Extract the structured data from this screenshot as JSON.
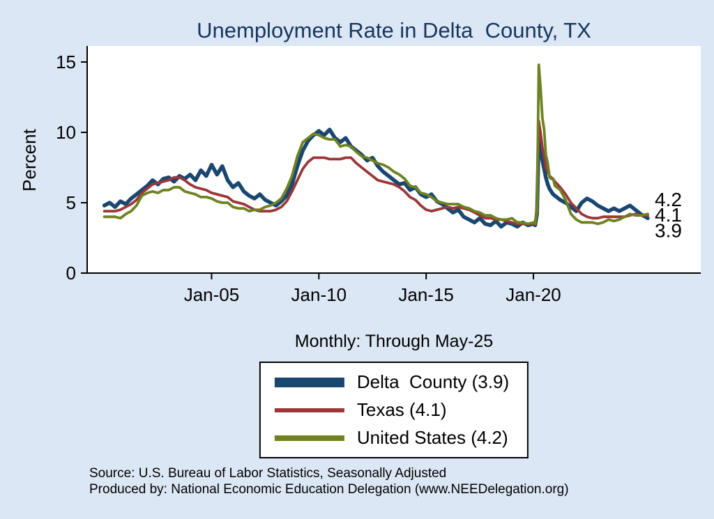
{
  "page": {
    "background": "#dbe7f4",
    "plot_background": "#ffffff",
    "axis_color": "#000000"
  },
  "chart_data": {
    "type": "line",
    "title": "Unemployment Rate in Delta  County, TX",
    "subtitle": "Monthly: Through May-25",
    "ylabel": "Percent",
    "ylim": [
      0,
      15
    ],
    "grid": false,
    "legend_position": "bottom-center",
    "y_ticks": [
      {
        "v": 0,
        "label": "0"
      },
      {
        "v": 5,
        "label": "5"
      },
      {
        "v": 10,
        "label": "10"
      },
      {
        "v": 15,
        "label": "15"
      }
    ],
    "x_ticks": [
      {
        "v": 2005,
        "label": "Jan-05"
      },
      {
        "v": 2010,
        "label": "Jan-10"
      },
      {
        "v": 2015,
        "label": "Jan-15"
      },
      {
        "v": 2020,
        "label": "Jan-20"
      }
    ],
    "x": [
      2000.0,
      2000.25,
      2000.5,
      2000.75,
      2001.0,
      2001.25,
      2001.5,
      2001.75,
      2002.0,
      2002.25,
      2002.5,
      2002.75,
      2003.0,
      2003.25,
      2003.5,
      2003.75,
      2004.0,
      2004.25,
      2004.5,
      2004.75,
      2005.0,
      2005.25,
      2005.5,
      2005.75,
      2006.0,
      2006.25,
      2006.5,
      2006.75,
      2007.0,
      2007.25,
      2007.5,
      2007.75,
      2008.0,
      2008.25,
      2008.5,
      2008.75,
      2009.0,
      2009.25,
      2009.5,
      2009.75,
      2010.0,
      2010.25,
      2010.5,
      2010.75,
      2011.0,
      2011.25,
      2011.5,
      2011.75,
      2012.0,
      2012.25,
      2012.5,
      2012.75,
      2013.0,
      2013.25,
      2013.5,
      2013.75,
      2014.0,
      2014.25,
      2014.5,
      2014.75,
      2015.0,
      2015.25,
      2015.5,
      2015.75,
      2016.0,
      2016.25,
      2016.5,
      2016.75,
      2017.0,
      2017.25,
      2017.5,
      2017.75,
      2018.0,
      2018.25,
      2018.5,
      2018.75,
      2019.0,
      2019.25,
      2019.5,
      2019.75,
      2020.0,
      2020.08,
      2020.17,
      2020.25,
      2020.33,
      2020.42,
      2020.5,
      2020.58,
      2020.67,
      2020.75,
      2020.83,
      2020.92,
      2021.0,
      2021.25,
      2021.5,
      2021.75,
      2022.0,
      2022.25,
      2022.5,
      2022.75,
      2023.0,
      2023.25,
      2023.5,
      2023.75,
      2024.0,
      2024.25,
      2024.5,
      2024.75,
      2025.0,
      2025.33
    ],
    "series": [
      {
        "name": "Delta  County (3.9)",
        "slug": "delta-county",
        "color": "#1a476f",
        "width": 5.5,
        "values": [
          4.8,
          5.0,
          4.7,
          5.1,
          4.9,
          5.3,
          5.6,
          5.9,
          6.2,
          6.6,
          6.3,
          6.7,
          6.8,
          6.5,
          6.9,
          6.7,
          7.0,
          6.6,
          7.3,
          6.9,
          7.7,
          7.0,
          7.6,
          6.6,
          6.1,
          6.4,
          5.8,
          5.5,
          5.3,
          5.6,
          5.2,
          5.0,
          4.8,
          5.1,
          5.5,
          6.3,
          7.6,
          8.7,
          9.4,
          9.8,
          10.1,
          9.8,
          10.2,
          9.6,
          9.3,
          9.6,
          9.0,
          8.7,
          8.4,
          8.0,
          8.2,
          7.6,
          7.2,
          6.9,
          6.6,
          6.3,
          6.4,
          5.9,
          6.1,
          5.6,
          5.4,
          5.6,
          5.1,
          4.9,
          4.6,
          4.3,
          4.5,
          4.0,
          3.8,
          3.6,
          3.9,
          3.5,
          3.4,
          3.7,
          3.3,
          3.6,
          3.5,
          3.3,
          3.6,
          3.4,
          3.5,
          3.4,
          4.2,
          9.7,
          8.9,
          8.0,
          7.4,
          6.8,
          6.3,
          6.0,
          5.8,
          5.6,
          5.5,
          5.2,
          5.0,
          4.7,
          4.4,
          5.0,
          5.3,
          5.1,
          4.8,
          4.6,
          4.4,
          4.6,
          4.4,
          4.6,
          4.8,
          4.5,
          4.2,
          3.9
        ]
      },
      {
        "name": "Texas (4.1)",
        "slug": "texas",
        "color": "#9b3739",
        "width": 3.8,
        "values": [
          4.4,
          4.4,
          4.4,
          4.5,
          4.7,
          4.9,
          5.2,
          5.7,
          6.0,
          6.3,
          6.4,
          6.5,
          6.6,
          6.8,
          6.8,
          6.6,
          6.3,
          6.1,
          6.0,
          5.9,
          5.7,
          5.6,
          5.5,
          5.4,
          5.1,
          5.0,
          4.9,
          4.7,
          4.5,
          4.4,
          4.4,
          4.4,
          4.5,
          4.7,
          5.1,
          5.8,
          6.6,
          7.4,
          7.9,
          8.2,
          8.2,
          8.2,
          8.1,
          8.1,
          8.1,
          8.2,
          8.2,
          7.8,
          7.5,
          7.2,
          6.9,
          6.6,
          6.5,
          6.4,
          6.3,
          6.1,
          5.8,
          5.4,
          5.2,
          4.8,
          4.5,
          4.4,
          4.5,
          4.6,
          4.7,
          4.6,
          4.7,
          4.6,
          4.5,
          4.3,
          4.1,
          3.9,
          3.9,
          3.8,
          3.8,
          3.7,
          3.6,
          3.5,
          3.5,
          3.5,
          3.5,
          3.5,
          4.8,
          10.8,
          10.0,
          8.9,
          8.3,
          7.5,
          7.2,
          6.9,
          6.8,
          6.7,
          6.5,
          6.1,
          5.6,
          5.0,
          4.6,
          4.2,
          4.0,
          3.9,
          3.9,
          4.0,
          4.0,
          4.0,
          4.0,
          4.0,
          4.1,
          4.2,
          4.1,
          4.1
        ]
      },
      {
        "name": "United States (4.2)",
        "slug": "united-states",
        "color": "#6d8220",
        "width": 3.8,
        "values": [
          4.0,
          4.0,
          4.0,
          3.9,
          4.2,
          4.4,
          4.8,
          5.5,
          5.7,
          5.8,
          5.7,
          5.9,
          5.9,
          6.1,
          6.1,
          5.8,
          5.7,
          5.6,
          5.4,
          5.4,
          5.3,
          5.1,
          5.0,
          5.0,
          4.7,
          4.6,
          4.6,
          4.4,
          4.5,
          4.5,
          4.7,
          4.8,
          5.0,
          5.3,
          6.0,
          6.9,
          8.3,
          9.3,
          9.6,
          9.9,
          9.8,
          9.6,
          9.5,
          9.5,
          9.0,
          9.1,
          9.0,
          8.6,
          8.3,
          8.2,
          8.0,
          7.8,
          7.7,
          7.5,
          7.2,
          7.0,
          6.7,
          6.2,
          6.1,
          5.7,
          5.6,
          5.4,
          5.1,
          5.0,
          4.9,
          4.9,
          4.9,
          4.7,
          4.6,
          4.4,
          4.3,
          4.1,
          4.1,
          3.9,
          3.8,
          3.8,
          3.9,
          3.6,
          3.6,
          3.5,
          3.6,
          3.5,
          4.4,
          14.8,
          13.2,
          11.0,
          10.2,
          8.4,
          7.8,
          6.8,
          6.7,
          6.7,
          6.2,
          5.9,
          5.2,
          4.2,
          3.8,
          3.6,
          3.6,
          3.6,
          3.5,
          3.6,
          3.8,
          3.7,
          3.8,
          4.0,
          4.2,
          4.1,
          4.1,
          4.2
        ]
      }
    ],
    "end_labels": [
      {
        "text": "4.2",
        "v": 5.2
      },
      {
        "text": "4.1",
        "v": 4.1
      },
      {
        "text": "3.9",
        "v": 3.0
      }
    ],
    "legend": {
      "items": [
        {
          "label": "Delta  County (3.9)",
          "color": "#1a476f",
          "swatch_h": 14
        },
        {
          "label": "Texas (4.1)",
          "color": "#9b3739",
          "swatch_h": 6
        },
        {
          "label": "United States (4.2)",
          "color": "#6d8220",
          "swatch_h": 8
        }
      ]
    },
    "source_lines": [
      "Source: U.S. Bureau of Labor Statistics, Seasonally Adjusted",
      "Produced by: National Economic Education Delegation (www.NEEDelegation.org)"
    ]
  }
}
